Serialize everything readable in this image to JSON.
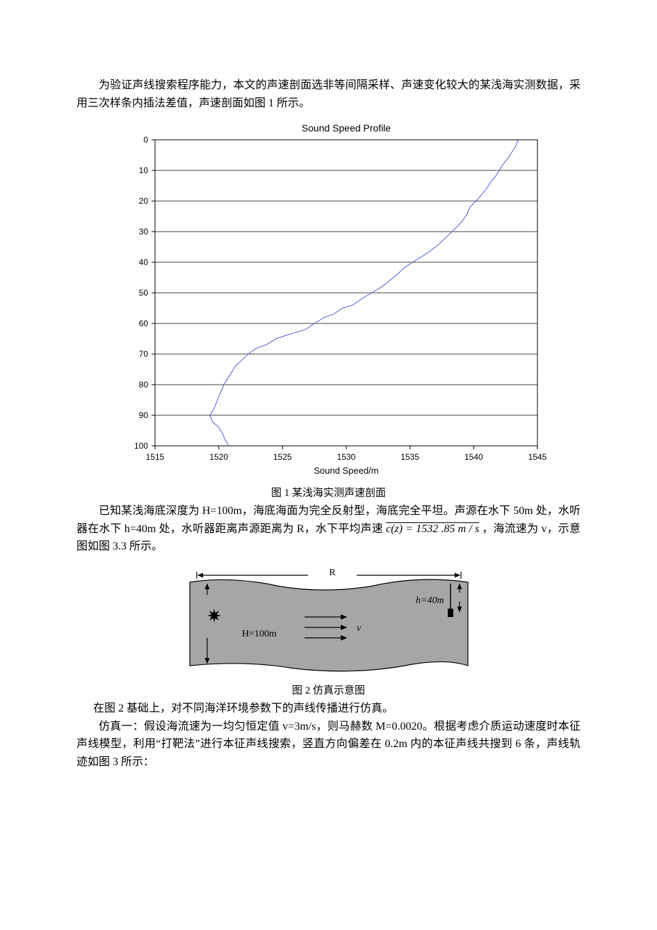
{
  "para1": "为验证声线搜索程序能力，本文的声速剖面选非等间隔采样、声速变化较大的某浅海实测数据，采用三次样条内插法差值，声速剖面如图 1 所示。",
  "chart": {
    "type": "line",
    "title": "Sound Speed Profile",
    "title_fontsize": 14,
    "title_color": "#000000",
    "xlabel": "Sound Speed/m",
    "label_fontsize": 13,
    "label_color": "#000000",
    "xlim": [
      1515,
      1545
    ],
    "xtick_step": 5,
    "xticks": [
      1515,
      1520,
      1525,
      1530,
      1535,
      1540,
      1545
    ],
    "ylim": [
      0,
      100
    ],
    "ytick_step": 10,
    "yticks": [
      0,
      10,
      20,
      30,
      40,
      50,
      60,
      70,
      80,
      90,
      100
    ],
    "y_inverted": true,
    "background_color": "#ffffff",
    "axis_color": "#000000",
    "grid_color": "#000000",
    "grid_linewidth": 0.8,
    "line_color": "#4a5fd1",
    "line_width": 1.0,
    "tick_fontsize": 12,
    "data": [
      [
        1543.5,
        0
      ],
      [
        1543.3,
        2
      ],
      [
        1543.0,
        4
      ],
      [
        1542.7,
        6
      ],
      [
        1542.3,
        8
      ],
      [
        1542.0,
        10
      ],
      [
        1541.7,
        12
      ],
      [
        1541.3,
        14
      ],
      [
        1541.0,
        16
      ],
      [
        1540.6,
        18
      ],
      [
        1540.2,
        20
      ],
      [
        1539.7,
        22
      ],
      [
        1539.5,
        24
      ],
      [
        1539.2,
        26
      ],
      [
        1538.8,
        28
      ],
      [
        1538.3,
        30
      ],
      [
        1537.8,
        32
      ],
      [
        1537.3,
        34
      ],
      [
        1536.7,
        36
      ],
      [
        1536.0,
        38
      ],
      [
        1535.2,
        40
      ],
      [
        1534.5,
        42
      ],
      [
        1534.0,
        44
      ],
      [
        1533.4,
        46
      ],
      [
        1532.8,
        48
      ],
      [
        1532.0,
        50
      ],
      [
        1531.2,
        52
      ],
      [
        1530.5,
        54
      ],
      [
        1529.7,
        55
      ],
      [
        1529.0,
        57
      ],
      [
        1528.3,
        58
      ],
      [
        1527.5,
        60
      ],
      [
        1526.8,
        62
      ],
      [
        1526.0,
        63
      ],
      [
        1525.2,
        64
      ],
      [
        1524.5,
        65
      ],
      [
        1523.7,
        67
      ],
      [
        1523.0,
        68
      ],
      [
        1522.3,
        70
      ],
      [
        1521.8,
        72
      ],
      [
        1521.3,
        74
      ],
      [
        1521.0,
        76
      ],
      [
        1520.7,
        78
      ],
      [
        1520.4,
        80
      ],
      [
        1520.2,
        82
      ],
      [
        1520.0,
        84
      ],
      [
        1519.8,
        86
      ],
      [
        1519.6,
        88
      ],
      [
        1519.3,
        90
      ],
      [
        1519.5,
        92
      ],
      [
        1520.0,
        94
      ],
      [
        1520.3,
        96
      ],
      [
        1520.5,
        98
      ],
      [
        1520.8,
        100
      ]
    ]
  },
  "caption1": "图 1 某浅海实测声速剖面",
  "para2_pre": "已知某浅海底深度为 H=100m，海底海面为完全反射型，海底完全平坦。声源在水下 50m 处，水听器在水下 h=40m 处，水听器距离声源距离为 R，水下平均声速 ",
  "para2_formula": "c(z) = 1532 .85 m / s",
  "para2_post": " ，海流速为 v，示意图如图 3.3 所示。",
  "diagram": {
    "type": "infographic",
    "background_color": "#a6a6a6",
    "border_color": "#000000",
    "text_color": "#000000",
    "fontsize": 14,
    "font_style": "italic",
    "R_label": "R",
    "H_label": "H=100m",
    "h_label": "h=40m",
    "v_label": "v",
    "arrow_color": "#000000",
    "star_color": "#000000"
  },
  "caption2": "图 2 仿真示意图",
  "para3": "在图 2 基础上，对不同海洋环境参数下的声线传播进行仿真。",
  "para4": "仿真一：假设海流速为一均匀恒定值 v=3m/s，则马赫数 M=0.0020。根据考虑介质运动速度时本征声线模型，利用“打靶法”进行本征声线搜索，竖直方向偏差在 0.2m 内的本征声线共搜到 6 条，声线轨迹如图 3 所示："
}
